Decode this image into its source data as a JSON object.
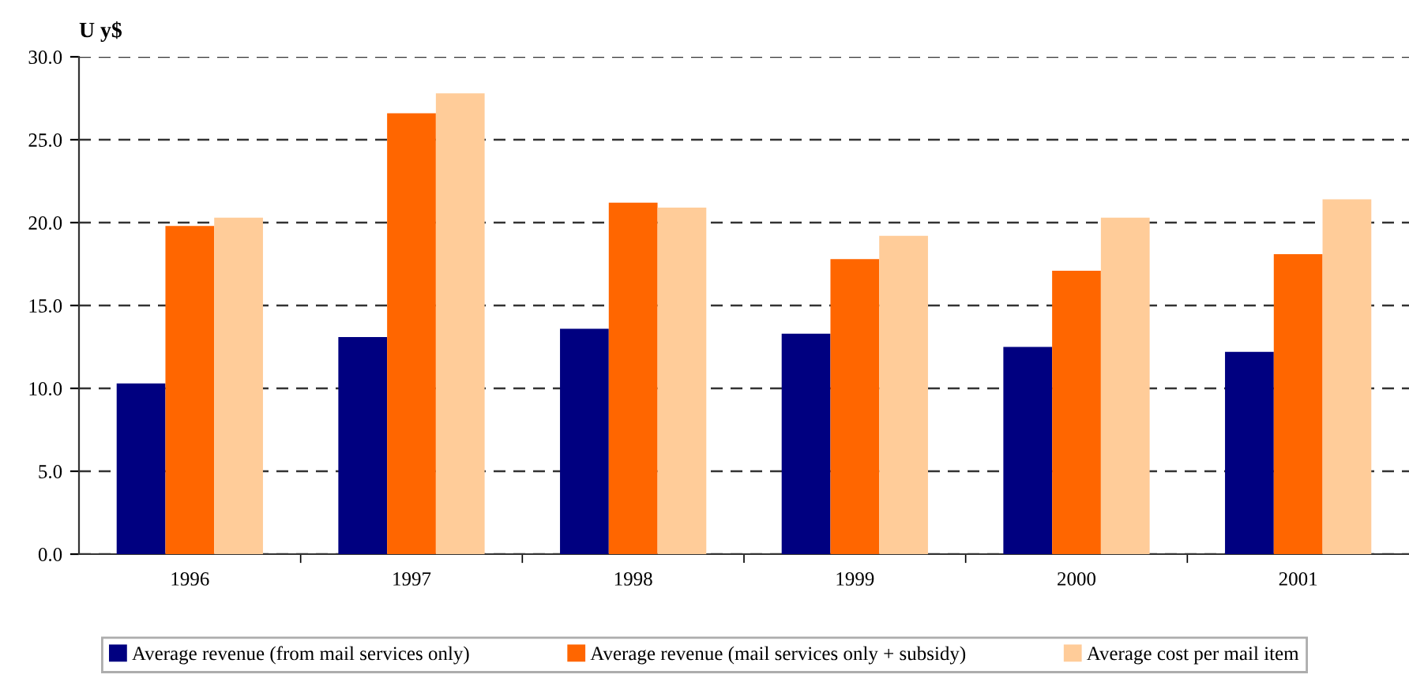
{
  "chart_data": {
    "type": "bar",
    "ylabel": "U y$",
    "categories": [
      "1996",
      "1997",
      "1998",
      "1999",
      "2000",
      "2001"
    ],
    "series": [
      {
        "name": "Average revenue (from mail services only)",
        "color": "#000080",
        "values": [
          10.3,
          13.1,
          13.6,
          13.3,
          12.5,
          12.2
        ]
      },
      {
        "name": "Average revenue (mail services only + subsidy)",
        "color": "#ff6600",
        "values": [
          19.8,
          26.6,
          21.2,
          17.8,
          17.1,
          18.1
        ]
      },
      {
        "name": "Average cost per mail item",
        "color": "#ffcc99",
        "values": [
          20.3,
          27.8,
          20.9,
          19.2,
          20.3,
          21.4
        ]
      }
    ],
    "ylim": [
      0,
      30
    ],
    "yticks": [
      {
        "value": 0,
        "label": "0.0"
      },
      {
        "value": 5,
        "label": "5.0"
      },
      {
        "value": 10,
        "label": "10.0"
      },
      {
        "value": 15,
        "label": "15.0"
      },
      {
        "value": 20,
        "label": "20.0"
      },
      {
        "value": 25,
        "label": "25.0"
      },
      {
        "value": 30,
        "label": "30.0"
      }
    ],
    "grid": "y",
    "legend": "bottom"
  }
}
